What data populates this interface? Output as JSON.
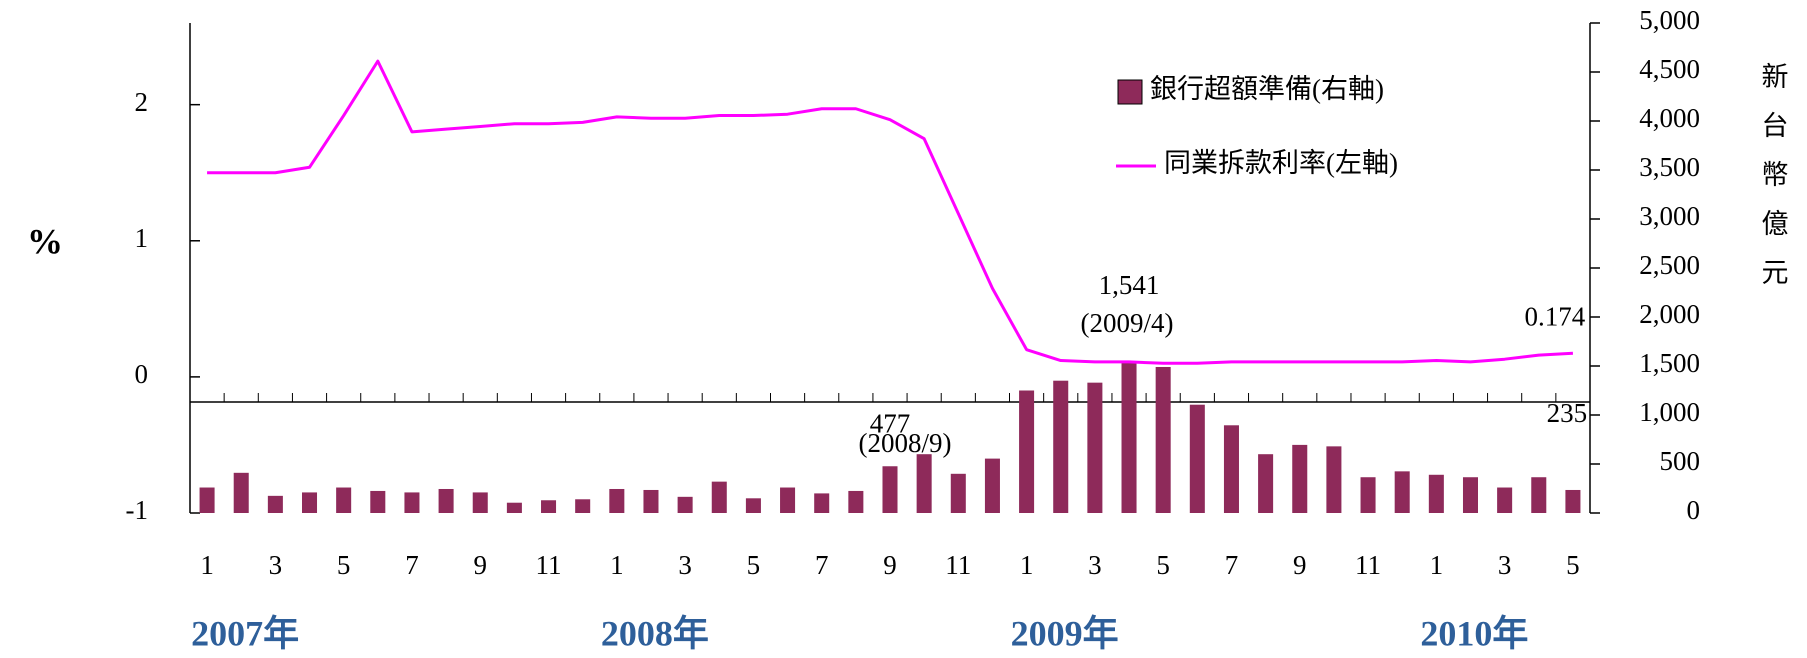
{
  "chart_data": {
    "type": "bar_line",
    "categories": [
      "1",
      null,
      "3",
      null,
      "5",
      null,
      "7",
      null,
      "9",
      null,
      "11",
      null,
      "1",
      null,
      "3",
      null,
      "5",
      null,
      "7",
      null,
      "9",
      null,
      "11",
      null,
      "1",
      null,
      "3",
      null,
      "5",
      null,
      "7",
      null,
      "9",
      null,
      "11",
      null,
      "1",
      null,
      "3",
      null,
      "5"
    ],
    "year_labels": [
      "2007年",
      "2008年",
      "2009年",
      "2010年"
    ],
    "ylabel": "%",
    "y2label": "新台幣億元",
    "ylim": [
      -1,
      2.6
    ],
    "yticks": [
      -1,
      0,
      1,
      2
    ],
    "y2lim": [
      0,
      5000
    ],
    "y2ticks": [
      0,
      500,
      {
        "value": 1000,
        "label": "1,000"
      },
      {
        "value": 1500,
        "label": "1,500"
      },
      {
        "value": 2000,
        "label": "2,000"
      },
      {
        "value": 2500,
        "label": "2,500"
      },
      {
        "value": 3000,
        "label": "3,000"
      },
      {
        "value": 3500,
        "label": "3,500"
      },
      {
        "value": 4000,
        "label": "4,000"
      },
      {
        "value": 4500,
        "label": "4,500"
      },
      {
        "value": 5000,
        "label": "5,000"
      }
    ],
    "legend": "upper right",
    "annotations": [
      "(2008/9)",
      "(2009/4)"
    ],
    "series": [
      {
        "name": "銀行超額準備(右軸)",
        "type": "bar",
        "axis": "y2",
        "color": "#8e2a5a",
        "values": [
          260,
          410,
          175,
          210,
          260,
          225,
          210,
          245,
          210,
          105,
          130,
          140,
          245,
          235,
          165,
          320,
          150,
          260,
          200,
          225,
          477,
          600,
          400,
          555,
          1250,
          1350,
          1330,
          1541,
          1490,
          1105,
          895,
          600,
          695,
          680,
          365,
          425,
          390,
          365,
          260,
          365,
          235
        ],
        "value_labels": [
          null,
          null,
          null,
          null,
          null,
          null,
          null,
          null,
          null,
          null,
          null,
          null,
          null,
          null,
          null,
          null,
          null,
          null,
          null,
          null,
          "477",
          null,
          null,
          null,
          null,
          null,
          null,
          "1,541",
          null,
          null,
          null,
          null,
          null,
          null,
          null,
          null,
          null,
          null,
          null,
          null,
          "235"
        ]
      },
      {
        "name": "同業拆款利率(左軸)",
        "type": "line",
        "axis": "y",
        "color": "#ff00ff",
        "values": [
          1.5,
          1.5,
          1.5,
          1.54,
          1.92,
          2.32,
          1.8,
          1.82,
          1.84,
          1.86,
          1.86,
          1.87,
          1.91,
          1.9,
          1.9,
          1.92,
          1.92,
          1.93,
          1.97,
          1.97,
          1.89,
          1.75,
          1.2,
          0.65,
          0.2,
          0.12,
          0.11,
          0.11,
          0.1,
          0.1,
          0.11,
          0.11,
          0.11,
          0.11,
          0.11,
          0.11,
          0.12,
          0.11,
          0.13,
          0.16,
          0.174
        ],
        "value_labels": [
          null,
          null,
          null,
          null,
          null,
          null,
          null,
          null,
          null,
          null,
          null,
          null,
          null,
          null,
          null,
          null,
          null,
          null,
          null,
          null,
          null,
          null,
          null,
          null,
          null,
          null,
          null,
          null,
          null,
          null,
          null,
          null,
          null,
          null,
          null,
          null,
          null,
          null,
          null,
          null,
          "0.174"
        ]
      }
    ]
  }
}
